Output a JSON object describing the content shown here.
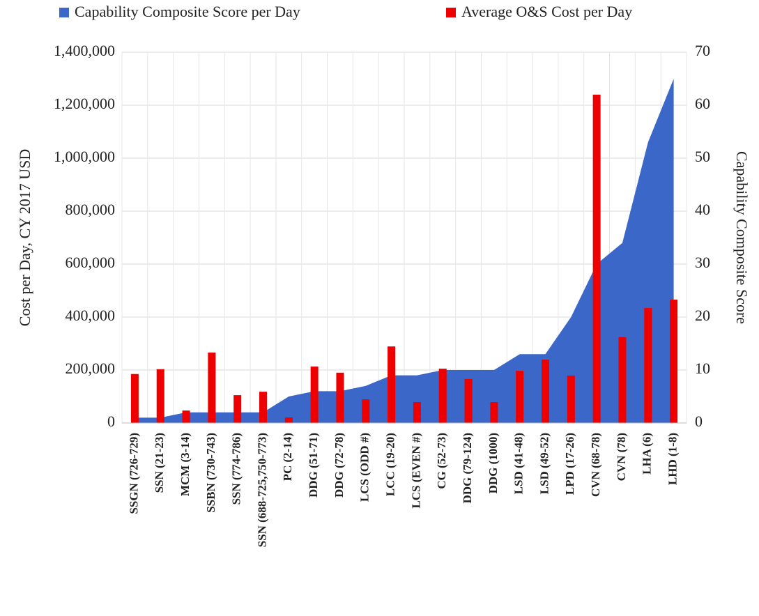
{
  "chart_data": {
    "type": "bar-area",
    "categories": [
      "SSGN (726-729)",
      "SSN (21-23)",
      "MCM (3-14)",
      "SSBN (730-743)",
      "SSN (774-786)",
      "SSN (688-725,750-773)",
      "PC (2-14)",
      "DDG (51-71)",
      "DDG (72-78)",
      "LCS (ODD #)",
      "LCC (19-20)",
      "LCS (EVEN #)",
      "CG (52-73)",
      "DDG (79-124)",
      "DDG (1000)",
      "LSD (41-48)",
      "LSD (49-52)",
      "LPD (17-26)",
      "CVN (68-78)",
      "CVN (78)",
      "LHA (6)",
      "LHD (1-8)"
    ],
    "series": [
      {
        "name": "Capability Composite Score per Day",
        "color": "#3a67c8",
        "axis": "y2",
        "kind": "area",
        "values": [
          1,
          1,
          2,
          2,
          2,
          2,
          5,
          6,
          6,
          7,
          9,
          9,
          10,
          10,
          10,
          13,
          13,
          20,
          30,
          34,
          53,
          65
        ]
      },
      {
        "name": "Average O&S Cost per Day",
        "color": "#ee0000",
        "kind": "bar",
        "values": [
          185000,
          203000,
          47000,
          266000,
          105000,
          118000,
          21000,
          213000,
          190000,
          89000,
          289000,
          79000,
          205000,
          166000,
          79000,
          197000,
          239000,
          179000,
          1240000,
          324000,
          434000,
          466000
        ]
      }
    ],
    "ylabel": "Cost per Day, CY 2017 USD",
    "y2label": "Capability Composite Score",
    "ylim": [
      0,
      1400000
    ],
    "yticks": [
      {
        "value": 0,
        "label": "0"
      },
      {
        "value": 200000,
        "label": "200,000"
      },
      {
        "value": 400000,
        "label": "400,000"
      },
      {
        "value": 600000,
        "label": "600,000"
      },
      {
        "value": 800000,
        "label": "800,000"
      },
      {
        "value": 1000000,
        "label": "1,000,000"
      },
      {
        "value": 1200000,
        "label": "1,200,000"
      },
      {
        "value": 1400000,
        "label": "1,400,000"
      }
    ],
    "y2lim": [
      0,
      70
    ],
    "y2ticks": [
      0,
      10,
      20,
      30,
      40,
      50,
      60,
      70
    ],
    "grid": true,
    "legend": "top"
  }
}
